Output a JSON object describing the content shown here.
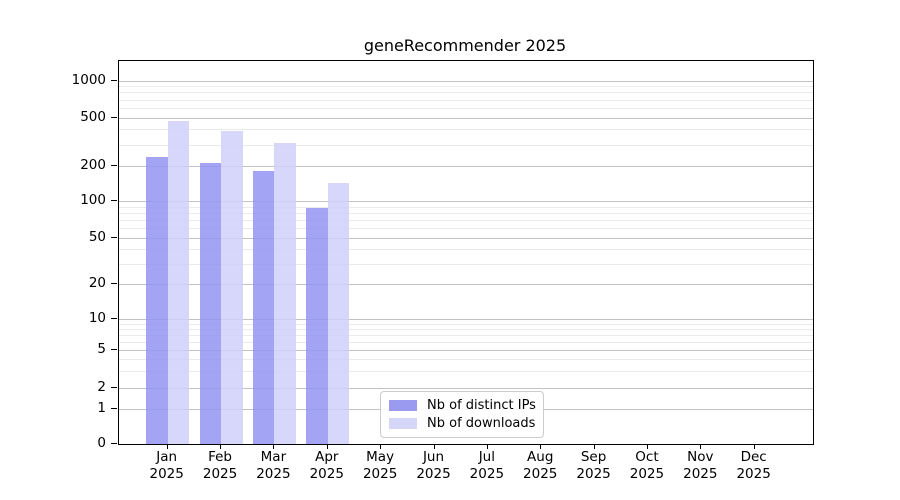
{
  "chart_data": {
    "type": "bar",
    "title": "geneRecommender 2025",
    "categories": [
      "Jan",
      "Feb",
      "Mar",
      "Apr",
      "May",
      "Jun",
      "Jul",
      "Aug",
      "Sep",
      "Oct",
      "Nov",
      "Dec"
    ],
    "category_sublabel": "2025",
    "series": [
      {
        "name": "Nb of distinct IPs",
        "color": "#9a9af0",
        "fill": "rgba(148,148,242,0.85)",
        "values": [
          238,
          210,
          180,
          87,
          null,
          null,
          null,
          null,
          null,
          null,
          null,
          null
        ]
      },
      {
        "name": "Nb of downloads",
        "color": "#d6d6f8",
        "fill": "rgba(208,208,250,0.85)",
        "values": [
          470,
          388,
          308,
          142,
          null,
          null,
          null,
          null,
          null,
          null,
          null,
          null
        ]
      }
    ],
    "y_ticks": [
      0,
      1,
      2,
      5,
      10,
      20,
      50,
      100,
      200,
      500,
      1000
    ],
    "y_minor_ticks": [
      3,
      4,
      6,
      7,
      8,
      9,
      30,
      40,
      60,
      70,
      80,
      90,
      300,
      400,
      600,
      700,
      800,
      900
    ],
    "scale": "symlog",
    "ylim": [
      0,
      1500
    ],
    "grid": true,
    "legend_position": "lower-center",
    "axis_colors": {
      "spine": "#000000",
      "major_grid": "#c3c3c3",
      "minor_grid": "#ebebeb"
    }
  }
}
